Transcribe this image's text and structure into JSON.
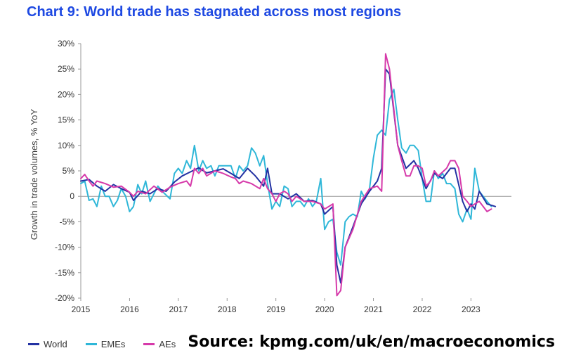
{
  "header": {
    "title": "Chart 9: World trade has stagnated across most regions"
  },
  "footer": {
    "source": "Source: kpmg.com/uk/en/macroeconomics"
  },
  "colors": {
    "world": "#2332a3",
    "emes": "#2fb7d8",
    "aes": "#d63aaa",
    "title": "#1e49e2",
    "grid": "#bbbbbb"
  },
  "chart_data": {
    "type": "line",
    "ylabel": "Growth in trade volumes, % YoY",
    "ylim": [
      -20,
      30
    ],
    "yticks": [
      30,
      25,
      20,
      15,
      10,
      5,
      0,
      -5,
      -10,
      -15,
      -20
    ],
    "ytick_labels": [
      "30%",
      "25%",
      "20%",
      "15%",
      "10%",
      "5%",
      "0",
      "-5%",
      "-10%",
      "-15%",
      "-20%"
    ],
    "xlim": [
      2015,
      2023.83
    ],
    "xticks": [
      2015,
      2016,
      2017,
      2018,
      2019,
      2020,
      2021,
      2022,
      2023
    ],
    "xtick_labels": [
      "2015",
      "2016",
      "2017",
      "2018",
      "2019",
      "2020",
      "2021",
      "2022",
      "2023"
    ],
    "grid": false,
    "legend_position": "bottom-left",
    "series": [
      {
        "name": "World",
        "color": "#2332a3",
        "points": [
          [
            2015.0,
            3.0
          ],
          [
            2015.17,
            3.3
          ],
          [
            2015.33,
            2.0
          ],
          [
            2015.5,
            1.0
          ],
          [
            2015.67,
            2.3
          ],
          [
            2015.83,
            1.5
          ],
          [
            2016.0,
            0.8
          ],
          [
            2016.08,
            -0.8
          ],
          [
            2016.25,
            1.0
          ],
          [
            2016.42,
            0.5
          ],
          [
            2016.58,
            1.5
          ],
          [
            2016.75,
            1.0
          ],
          [
            2016.92,
            2.8
          ],
          [
            2017.08,
            4.0
          ],
          [
            2017.25,
            4.8
          ],
          [
            2017.42,
            5.6
          ],
          [
            2017.58,
            4.6
          ],
          [
            2017.75,
            5.0
          ],
          [
            2017.92,
            5.4
          ],
          [
            2018.08,
            4.5
          ],
          [
            2018.25,
            3.5
          ],
          [
            2018.42,
            5.5
          ],
          [
            2018.58,
            4.0
          ],
          [
            2018.75,
            2.0
          ],
          [
            2018.83,
            5.5
          ],
          [
            2018.92,
            0.5
          ],
          [
            2019.08,
            0.5
          ],
          [
            2019.25,
            -0.5
          ],
          [
            2019.42,
            0.5
          ],
          [
            2019.58,
            -1.0
          ],
          [
            2019.75,
            -0.8
          ],
          [
            2019.92,
            -1.5
          ],
          [
            2020.0,
            -3.5
          ],
          [
            2020.17,
            -2.0
          ],
          [
            2020.25,
            -13.5
          ],
          [
            2020.33,
            -17.0
          ],
          [
            2020.42,
            -10.0
          ],
          [
            2020.58,
            -6.0
          ],
          [
            2020.75,
            -1.5
          ],
          [
            2020.92,
            1.0
          ],
          [
            2021.08,
            3.0
          ],
          [
            2021.17,
            5.5
          ],
          [
            2021.25,
            25.0
          ],
          [
            2021.33,
            24.0
          ],
          [
            2021.5,
            10.0
          ],
          [
            2021.67,
            5.5
          ],
          [
            2021.83,
            7.0
          ],
          [
            2021.92,
            5.5
          ],
          [
            2022.08,
            1.5
          ],
          [
            2022.25,
            4.5
          ],
          [
            2022.42,
            3.5
          ],
          [
            2022.58,
            5.5
          ],
          [
            2022.67,
            5.5
          ],
          [
            2022.83,
            -1.0
          ],
          [
            2022.92,
            -3.0
          ],
          [
            2023.0,
            -1.5
          ],
          [
            2023.08,
            -2.5
          ],
          [
            2023.17,
            1.0
          ],
          [
            2023.33,
            -1.5
          ],
          [
            2023.5,
            -2.0
          ]
        ]
      },
      {
        "name": "EMEs",
        "color": "#2fb7d8",
        "points": [
          [
            2015.0,
            2.5
          ],
          [
            2015.08,
            3.0
          ],
          [
            2015.17,
            -0.8
          ],
          [
            2015.25,
            -0.5
          ],
          [
            2015.33,
            -2.0
          ],
          [
            2015.42,
            2.0
          ],
          [
            2015.5,
            0.0
          ],
          [
            2015.58,
            0.0
          ],
          [
            2015.67,
            -2.0
          ],
          [
            2015.75,
            -0.8
          ],
          [
            2015.83,
            1.5
          ],
          [
            2015.92,
            0.0
          ],
          [
            2016.0,
            -3.0
          ],
          [
            2016.08,
            -2.0
          ],
          [
            2016.17,
            2.3
          ],
          [
            2016.25,
            0.5
          ],
          [
            2016.33,
            3.0
          ],
          [
            2016.42,
            -1.0
          ],
          [
            2016.58,
            2.0
          ],
          [
            2016.67,
            1.0
          ],
          [
            2016.83,
            -0.5
          ],
          [
            2016.92,
            4.5
          ],
          [
            2017.0,
            5.5
          ],
          [
            2017.08,
            4.5
          ],
          [
            2017.17,
            7.0
          ],
          [
            2017.25,
            5.5
          ],
          [
            2017.33,
            10.0
          ],
          [
            2017.42,
            5.0
          ],
          [
            2017.5,
            7.0
          ],
          [
            2017.58,
            5.5
          ],
          [
            2017.67,
            6.0
          ],
          [
            2017.75,
            4.0
          ],
          [
            2017.83,
            6.0
          ],
          [
            2017.92,
            6.0
          ],
          [
            2018.0,
            6.0
          ],
          [
            2018.08,
            6.0
          ],
          [
            2018.17,
            3.5
          ],
          [
            2018.25,
            6.0
          ],
          [
            2018.33,
            5.0
          ],
          [
            2018.42,
            6.0
          ],
          [
            2018.5,
            9.5
          ],
          [
            2018.58,
            8.5
          ],
          [
            2018.67,
            6.0
          ],
          [
            2018.75,
            8.0
          ],
          [
            2018.83,
            2.5
          ],
          [
            2018.92,
            -2.5
          ],
          [
            2019.0,
            -1.0
          ],
          [
            2019.08,
            -2.0
          ],
          [
            2019.17,
            2.0
          ],
          [
            2019.25,
            1.5
          ],
          [
            2019.33,
            -2.0
          ],
          [
            2019.42,
            -1.0
          ],
          [
            2019.5,
            -1.0
          ],
          [
            2019.58,
            -2.0
          ],
          [
            2019.67,
            -0.5
          ],
          [
            2019.75,
            -2.0
          ],
          [
            2019.83,
            -1.0
          ],
          [
            2019.92,
            3.5
          ],
          [
            2020.0,
            -6.5
          ],
          [
            2020.08,
            -5.0
          ],
          [
            2020.17,
            -4.5
          ],
          [
            2020.25,
            -11.0
          ],
          [
            2020.33,
            -13.5
          ],
          [
            2020.42,
            -5.0
          ],
          [
            2020.5,
            -4.0
          ],
          [
            2020.58,
            -3.5
          ],
          [
            2020.67,
            -4.0
          ],
          [
            2020.75,
            1.0
          ],
          [
            2020.83,
            -0.5
          ],
          [
            2020.92,
            1.5
          ],
          [
            2021.0,
            7.5
          ],
          [
            2021.08,
            12.0
          ],
          [
            2021.17,
            13.0
          ],
          [
            2021.25,
            12.0
          ],
          [
            2021.33,
            19.0
          ],
          [
            2021.42,
            21.0
          ],
          [
            2021.5,
            15.0
          ],
          [
            2021.58,
            9.5
          ],
          [
            2021.67,
            8.5
          ],
          [
            2021.75,
            10.0
          ],
          [
            2021.83,
            10.0
          ],
          [
            2021.92,
            9.0
          ],
          [
            2022.0,
            3.5
          ],
          [
            2022.08,
            -1.0
          ],
          [
            2022.17,
            -1.0
          ],
          [
            2022.25,
            5.0
          ],
          [
            2022.33,
            3.5
          ],
          [
            2022.42,
            4.5
          ],
          [
            2022.5,
            2.5
          ],
          [
            2022.58,
            2.5
          ],
          [
            2022.67,
            1.5
          ],
          [
            2022.75,
            -3.5
          ],
          [
            2022.83,
            -5.0
          ],
          [
            2022.92,
            -2.5
          ],
          [
            2023.0,
            -4.5
          ],
          [
            2023.08,
            5.5
          ],
          [
            2023.17,
            1.0
          ],
          [
            2023.33,
            -1.0
          ],
          [
            2023.42,
            -2.0
          ]
        ]
      },
      {
        "name": "AEs",
        "color": "#d63aaa",
        "points": [
          [
            2015.0,
            3.5
          ],
          [
            2015.08,
            4.3
          ],
          [
            2015.17,
            3.0
          ],
          [
            2015.25,
            2.0
          ],
          [
            2015.33,
            3.0
          ],
          [
            2015.5,
            2.5
          ],
          [
            2015.67,
            1.8
          ],
          [
            2015.83,
            2.0
          ],
          [
            2016.0,
            0.8
          ],
          [
            2016.08,
            0.0
          ],
          [
            2016.17,
            1.0
          ],
          [
            2016.33,
            0.5
          ],
          [
            2016.5,
            2.0
          ],
          [
            2016.67,
            0.8
          ],
          [
            2016.83,
            1.8
          ],
          [
            2017.0,
            2.5
          ],
          [
            2017.17,
            3.0
          ],
          [
            2017.25,
            2.0
          ],
          [
            2017.33,
            5.5
          ],
          [
            2017.42,
            4.5
          ],
          [
            2017.5,
            5.5
          ],
          [
            2017.58,
            4.0
          ],
          [
            2017.75,
            5.0
          ],
          [
            2017.92,
            4.5
          ],
          [
            2018.08,
            3.8
          ],
          [
            2018.17,
            3.5
          ],
          [
            2018.25,
            2.5
          ],
          [
            2018.33,
            3.0
          ],
          [
            2018.5,
            2.5
          ],
          [
            2018.67,
            1.5
          ],
          [
            2018.75,
            3.5
          ],
          [
            2018.83,
            1.5
          ],
          [
            2018.92,
            0.5
          ],
          [
            2019.0,
            -1.0
          ],
          [
            2019.08,
            0.5
          ],
          [
            2019.17,
            1.0
          ],
          [
            2019.25,
            0.5
          ],
          [
            2019.33,
            -1.0
          ],
          [
            2019.42,
            0.0
          ],
          [
            2019.58,
            -1.0
          ],
          [
            2019.75,
            -1.0
          ],
          [
            2019.92,
            -1.5
          ],
          [
            2020.0,
            -2.5
          ],
          [
            2020.17,
            -1.5
          ],
          [
            2020.25,
            -19.5
          ],
          [
            2020.33,
            -18.5
          ],
          [
            2020.42,
            -10.0
          ],
          [
            2020.58,
            -6.5
          ],
          [
            2020.75,
            -1.0
          ],
          [
            2020.92,
            1.5
          ],
          [
            2021.08,
            2.0
          ],
          [
            2021.17,
            1.0
          ],
          [
            2021.25,
            28.0
          ],
          [
            2021.33,
            25.0
          ],
          [
            2021.5,
            10.0
          ],
          [
            2021.58,
            7.0
          ],
          [
            2021.67,
            4.0
          ],
          [
            2021.75,
            4.0
          ],
          [
            2021.83,
            6.0
          ],
          [
            2021.92,
            6.0
          ],
          [
            2022.0,
            5.5
          ],
          [
            2022.08,
            2.0
          ],
          [
            2022.17,
            3.0
          ],
          [
            2022.25,
            5.0
          ],
          [
            2022.33,
            4.0
          ],
          [
            2022.5,
            5.5
          ],
          [
            2022.58,
            7.0
          ],
          [
            2022.67,
            7.0
          ],
          [
            2022.75,
            5.5
          ],
          [
            2022.83,
            0.0
          ],
          [
            2022.92,
            -1.0
          ],
          [
            2023.0,
            -2.0
          ],
          [
            2023.08,
            -1.5
          ],
          [
            2023.17,
            -1.0
          ],
          [
            2023.33,
            -3.0
          ],
          [
            2023.42,
            -2.5
          ]
        ]
      }
    ]
  }
}
